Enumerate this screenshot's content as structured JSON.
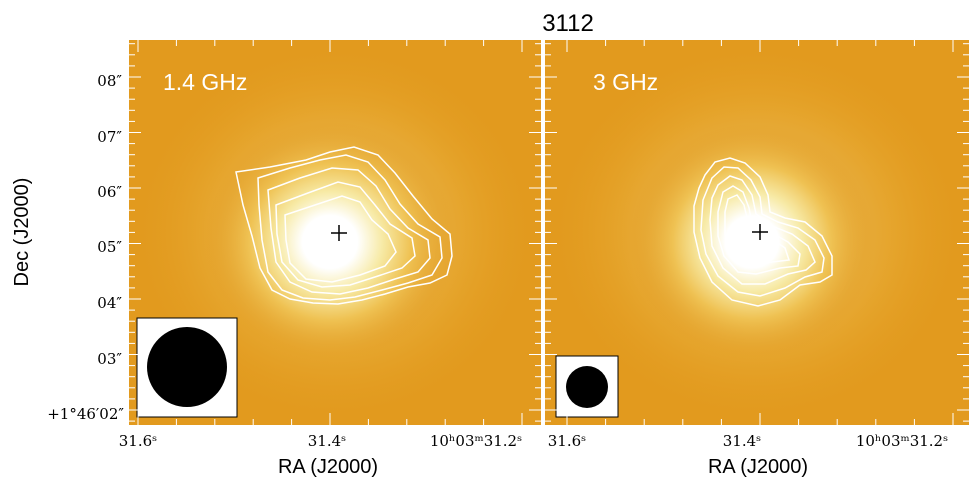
{
  "chart_data": {
    "type": "heatmap",
    "title": "3112",
    "panels": [
      {
        "label": "1.4 GHz",
        "xlabel": "RA (J2000)",
        "ylabel": "Dec (J2000)",
        "x_ticks": [
          "31.6ˢ",
          "31.4ˢ",
          "10ʰ03ᵐ31.2ˢ"
        ],
        "y_ticks": [
          "+1°46′02″",
          "03″",
          "04″",
          "05″",
          "06″",
          "07″",
          "08″"
        ],
        "beam": "large"
      },
      {
        "label": "3 GHz",
        "xlabel": "RA (J2000)",
        "x_ticks": [
          "31.6ˢ",
          "31.4ˢ",
          "10ʰ03ᵐ31.2ˢ"
        ],
        "beam": "small"
      }
    ],
    "background_color": "#e29a1e",
    "contour_color": "#ffffff",
    "marker": "+"
  }
}
